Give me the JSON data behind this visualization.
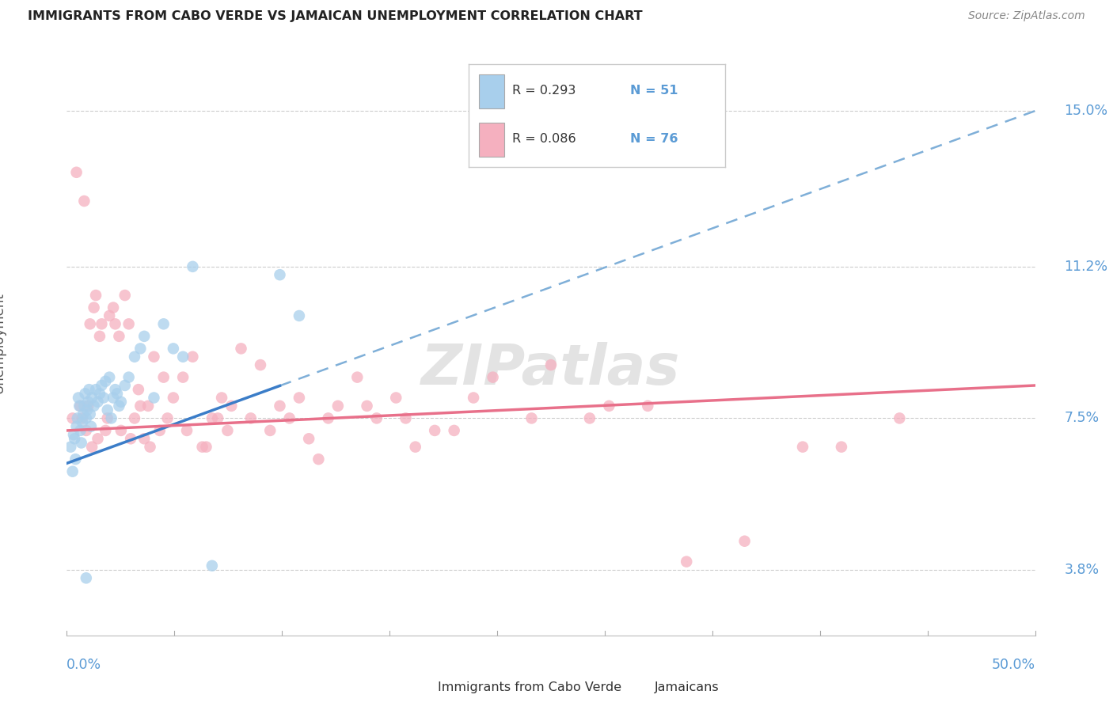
{
  "title": "IMMIGRANTS FROM CABO VERDE VS JAMAICAN UNEMPLOYMENT CORRELATION CHART",
  "source": "Source: ZipAtlas.com",
  "ylabel": "Unemployment",
  "y_ticks": [
    3.8,
    7.5,
    11.2,
    15.0
  ],
  "y_tick_labels": [
    "3.8%",
    "7.5%",
    "11.2%",
    "15.0%"
  ],
  "x_range": [
    0.0,
    50.0
  ],
  "y_range": [
    2.2,
    16.5
  ],
  "blue_color": "#A8CFEC",
  "pink_color": "#F5B0BF",
  "trend_blue_solid_color": "#3B7DC8",
  "trend_blue_dash_color": "#7FAFD8",
  "trend_pink_color": "#E8708A",
  "blue_line_x0": 0.0,
  "blue_line_y0": 6.4,
  "blue_line_x1": 50.0,
  "blue_line_y1": 15.0,
  "blue_solid_end_x": 11.0,
  "pink_line_x0": 0.0,
  "pink_line_y0": 7.2,
  "pink_line_x1": 50.0,
  "pink_line_y1": 8.3,
  "blue_scatter_x": [
    0.2,
    0.3,
    0.35,
    0.4,
    0.45,
    0.5,
    0.55,
    0.6,
    0.65,
    0.7,
    0.75,
    0.8,
    0.85,
    0.9,
    0.95,
    1.0,
    1.05,
    1.1,
    1.15,
    1.2,
    1.25,
    1.3,
    1.4,
    1.5,
    1.6,
    1.7,
    1.8,
    1.9,
    2.0,
    2.1,
    2.2,
    2.3,
    2.4,
    2.5,
    2.6,
    2.7,
    2.8,
    3.0,
    3.2,
    3.5,
    3.8,
    4.0,
    4.5,
    5.0,
    5.5,
    6.0,
    6.5,
    7.5,
    11.0,
    12.0,
    1.0
  ],
  "blue_scatter_y": [
    6.8,
    6.2,
    7.1,
    7.0,
    6.5,
    7.3,
    7.5,
    8.0,
    7.8,
    7.2,
    6.9,
    7.4,
    7.6,
    7.8,
    8.1,
    7.5,
    7.7,
    7.9,
    8.2,
    7.6,
    7.3,
    8.0,
    7.8,
    8.2,
    7.9,
    8.1,
    8.3,
    8.0,
    8.4,
    7.7,
    8.5,
    7.5,
    8.0,
    8.2,
    8.1,
    7.8,
    7.9,
    8.3,
    8.5,
    9.0,
    9.2,
    9.5,
    8.0,
    9.8,
    9.2,
    9.0,
    11.2,
    3.9,
    11.0,
    10.0,
    3.6
  ],
  "pink_scatter_x": [
    0.3,
    0.5,
    0.7,
    0.9,
    1.0,
    1.2,
    1.4,
    1.5,
    1.6,
    1.7,
    1.8,
    2.0,
    2.2,
    2.4,
    2.5,
    2.7,
    3.0,
    3.2,
    3.5,
    3.7,
    4.0,
    4.2,
    4.5,
    4.8,
    5.0,
    5.5,
    6.0,
    6.5,
    7.0,
    7.5,
    8.0,
    8.5,
    9.0,
    10.0,
    11.0,
    12.0,
    13.0,
    14.0,
    15.0,
    16.0,
    17.0,
    18.0,
    20.0,
    22.0,
    25.0,
    27.0,
    30.0,
    35.0,
    40.0,
    43.0,
    0.8,
    1.1,
    1.3,
    2.1,
    2.8,
    3.3,
    3.8,
    4.3,
    5.2,
    6.2,
    7.2,
    7.8,
    8.3,
    9.5,
    10.5,
    11.5,
    12.5,
    13.5,
    15.5,
    17.5,
    19.0,
    21.0,
    24.0,
    28.0,
    32.0,
    38.0
  ],
  "pink_scatter_y": [
    7.5,
    13.5,
    7.8,
    12.8,
    7.2,
    9.8,
    10.2,
    10.5,
    7.0,
    9.5,
    9.8,
    7.2,
    10.0,
    10.2,
    9.8,
    9.5,
    10.5,
    9.8,
    7.5,
    8.2,
    7.0,
    7.8,
    9.0,
    7.2,
    8.5,
    8.0,
    8.5,
    9.0,
    6.8,
    7.5,
    8.0,
    7.8,
    9.2,
    8.8,
    7.8,
    8.0,
    6.5,
    7.8,
    8.5,
    7.5,
    8.0,
    6.8,
    7.2,
    8.5,
    8.8,
    7.5,
    7.8,
    4.5,
    6.8,
    7.5,
    7.5,
    7.8,
    6.8,
    7.5,
    7.2,
    7.0,
    7.8,
    6.8,
    7.5,
    7.2,
    6.8,
    7.5,
    7.2,
    7.5,
    7.2,
    7.5,
    7.0,
    7.5,
    7.8,
    7.5,
    7.2,
    8.0,
    7.5,
    7.8,
    4.0,
    6.8
  ],
  "legend_r1": "R = 0.293",
  "legend_n1": "N = 51",
  "legend_r2": "R = 0.086",
  "legend_n2": "N = 76"
}
